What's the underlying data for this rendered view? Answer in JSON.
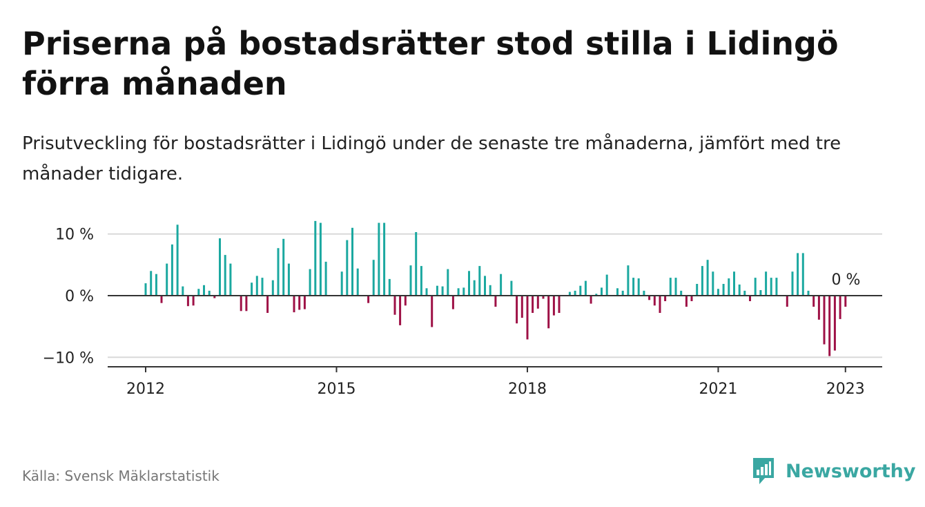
{
  "title": "Priserna på bostadsrätter stod stilla i Lidingö förra månaden",
  "subtitle": "Prisutveckling för bostadsrätter i Lidingö under de senaste tre månaderna, jämfört med tre månader tidigare.",
  "source": "Källa: Svensk Mäklarstatistik",
  "brand": "Newsworthy",
  "colors": {
    "positive": "#1ba8a0",
    "negative": "#9e1146",
    "brand": "#3aa7a2",
    "grid": "#d9d9d9",
    "axis": "#333333"
  },
  "chart_data": {
    "type": "bar",
    "x_start": "2012-01",
    "x_tick_labels": [
      "2012",
      "2015",
      "2018",
      "2021",
      "2023"
    ],
    "y_ticks": [
      10,
      0,
      -10
    ],
    "y_tick_labels": [
      "10 %",
      "0 %",
      "−10 %"
    ],
    "ylim": [
      -11.5,
      12.5
    ],
    "annotation": "0 %",
    "values": [
      2,
      4,
      3.5,
      -1.2,
      5.2,
      8.3,
      11.5,
      1.5,
      -1.7,
      -1.6,
      1.1,
      1.7,
      0.8,
      -0.4,
      9.3,
      6.6,
      5.2,
      0,
      -2.5,
      -2.5,
      2.1,
      3.2,
      2.9,
      -2.8,
      2.5,
      7.7,
      9.2,
      5.2,
      -2.7,
      -2.3,
      -2.2,
      4.3,
      12.1,
      11.8,
      5.5,
      0,
      0,
      3.9,
      9,
      11,
      4.4,
      0,
      -1.2,
      5.8,
      11.8,
      11.8,
      2.7,
      -3.1,
      -4.8,
      -1.6,
      4.9,
      10.3,
      4.8,
      1.2,
      -5.1,
      1.6,
      1.5,
      4.3,
      -2.2,
      1.2,
      1.3,
      4,
      2.5,
      4.8,
      3.2,
      1.7,
      -1.8,
      3.5,
      0,
      2.4,
      -4.5,
      -3.6,
      -7.1,
      -2.8,
      -2.1,
      -0.5,
      -5.3,
      -3.2,
      -2.8,
      0,
      0.6,
      0.8,
      1.6,
      2.4,
      -1.3,
      0.3,
      1.3,
      3.4,
      0,
      1.2,
      0.8,
      4.9,
      2.9,
      2.8,
      0.8,
      -0.7,
      -1.6,
      -2.8,
      -0.9,
      2.9,
      2.9,
      0.8,
      -1.8,
      -0.9,
      1.9,
      4.8,
      5.8,
      3.9,
      1.1,
      1.9,
      2.8,
      3.9,
      1.8,
      0.8,
      -0.9,
      2.9,
      0.9,
      3.9,
      2.9,
      2.9,
      0,
      -1.8,
      3.9,
      6.9,
      6.9,
      0.8,
      -1.8,
      -3.9,
      -7.9,
      -9.8,
      -8.9,
      -3.8,
      -1.8,
      0
    ]
  }
}
